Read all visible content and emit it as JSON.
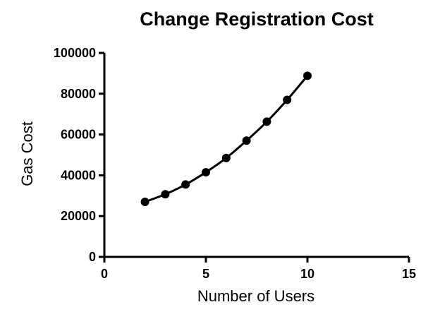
{
  "chart_data": {
    "type": "scatter",
    "title": "Change Registration Cost",
    "xlabel": "Number of Users",
    "ylabel": "Gas Cost",
    "xlim": [
      0,
      15
    ],
    "ylim": [
      0,
      100000
    ],
    "x_ticks": [
      0,
      5,
      10,
      15
    ],
    "y_ticks": [
      0,
      20000,
      40000,
      60000,
      80000,
      100000
    ],
    "grid": false,
    "fit_curve": true,
    "series": [
      {
        "x": [
          2,
          3,
          4,
          5,
          6,
          7,
          8,
          9,
          10
        ],
        "y": [
          27000,
          30700,
          35500,
          41500,
          48500,
          57000,
          66300,
          77000,
          88800
        ]
      }
    ]
  }
}
